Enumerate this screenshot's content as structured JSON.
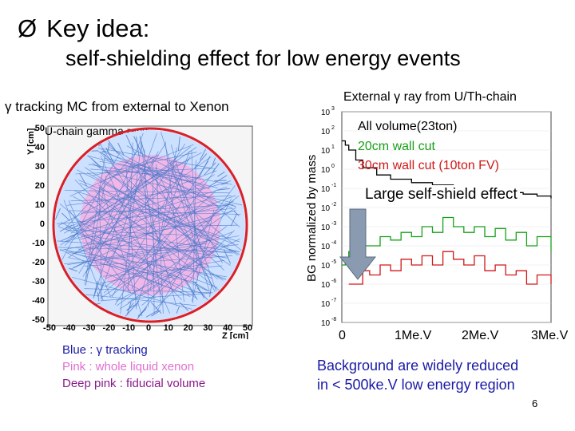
{
  "title": {
    "line1": "Key idea:",
    "line2": "self-shielding effect for low energy events",
    "bullet": "Ø"
  },
  "left_panel": {
    "heading": "γ tracking MC from external to Xenon",
    "plot_title": "U-chain gamma rays",
    "y_axis_label": "Y [cm]",
    "x_axis_label": "Z [cm]",
    "y_ticks": [
      "50",
      "40",
      "30",
      "20",
      "10",
      "0",
      "-10",
      "-20",
      "-30",
      "-40",
      "-50"
    ],
    "x_ticks": [
      "-50",
      "-40",
      "-30",
      "-20",
      "-10",
      "0",
      "10",
      "20",
      "30",
      "40",
      "50"
    ],
    "colors": {
      "track": "#4a78c8",
      "liquid": "#f0b8e8",
      "fiducial": "#e890d8",
      "wall": "#d8202a"
    },
    "legend": [
      {
        "text": "Blue : γ tracking",
        "color": "#1a1aa6"
      },
      {
        "text": "Pink : whole liquid xenon",
        "color": "#e070d0"
      },
      {
        "text": "Deep pink : fiducial volume",
        "color": "#8a1a8a"
      }
    ]
  },
  "right_panel": {
    "heading": "External γ ray from U/Th-chain",
    "y_axis_label": "BG normalized by mass",
    "x_axis_labels": [
      "0",
      "1Me.V",
      "2Me.V",
      "3Me.V"
    ],
    "annotation": "Large self-shield effect",
    "annotation_arrow_color": "#8a9ab0",
    "legend": [
      {
        "text": "All volume(23ton)",
        "color": "#000000"
      },
      {
        "text": "20cm wall cut",
        "color": "#18a018"
      },
      {
        "text": "30cm wall cut (10ton FV)",
        "color": "#d01818"
      }
    ]
  },
  "chart_data": {
    "type": "line",
    "title": "External γ ray from U/Th-chain",
    "xlabel": "",
    "ylabel": "BG normalized by mass",
    "log_y": true,
    "ylim": [
      1e-08,
      1000.0
    ],
    "xlim": [
      0,
      3
    ],
    "x_tick_labels": [
      "0",
      "1Me.V",
      "2Me.V",
      "3Me.V"
    ],
    "series": [
      {
        "name": "All volume(23ton)",
        "color": "#000000",
        "x": [
          0.0,
          0.05,
          0.1,
          0.2,
          0.3,
          0.5,
          0.7,
          1.0,
          1.3,
          1.6,
          1.8,
          2.0,
          2.2,
          2.4,
          2.6,
          2.8,
          3.0
        ],
        "y": [
          30,
          18,
          10,
          3,
          1.2,
          0.5,
          0.3,
          0.2,
          0.15,
          0.12,
          0.1,
          0.08,
          0.07,
          0.06,
          0.05,
          0.04,
          0.03
        ]
      },
      {
        "name": "20cm wall cut",
        "color": "#18a018",
        "x": [
          0.0,
          0.05,
          0.1,
          0.2,
          0.3,
          0.4,
          0.55,
          0.7,
          0.85,
          1.0,
          1.15,
          1.3,
          1.45,
          1.6,
          1.75,
          1.9,
          2.05,
          2.2,
          2.35,
          2.5,
          2.65,
          2.8,
          3.0
        ],
        "y": [
          1e-05,
          2e-05,
          5e-05,
          5e-05,
          0.0001,
          0.0001,
          0.0003,
          0.0002,
          0.0005,
          0.0003,
          0.001,
          0.0005,
          0.003,
          0.001,
          0.0005,
          0.001,
          0.0003,
          0.0008,
          0.0002,
          0.0005,
          0.0001,
          0.0003,
          5e-05
        ]
      },
      {
        "name": "30cm wall cut (10ton FV)",
        "color": "#d01818",
        "x": [
          0.1,
          0.2,
          0.3,
          0.4,
          0.55,
          0.7,
          0.85,
          1.0,
          1.15,
          1.3,
          1.45,
          1.6,
          1.75,
          1.9,
          2.05,
          2.2,
          2.35,
          2.5,
          2.65,
          2.8,
          3.0
        ],
        "y": [
          1e-06,
          1e-06,
          5e-06,
          3e-06,
          1e-05,
          5e-06,
          2e-05,
          1e-05,
          3e-05,
          1e-05,
          5e-05,
          2e-05,
          1e-05,
          3e-05,
          5e-06,
          1e-05,
          3e-06,
          5e-06,
          1e-06,
          3e-06,
          1e-06
        ]
      }
    ]
  },
  "conclusion": {
    "line1": "Background are widely reduced",
    "line2": "in < 500ke.V low energy region"
  },
  "page_number": "6"
}
